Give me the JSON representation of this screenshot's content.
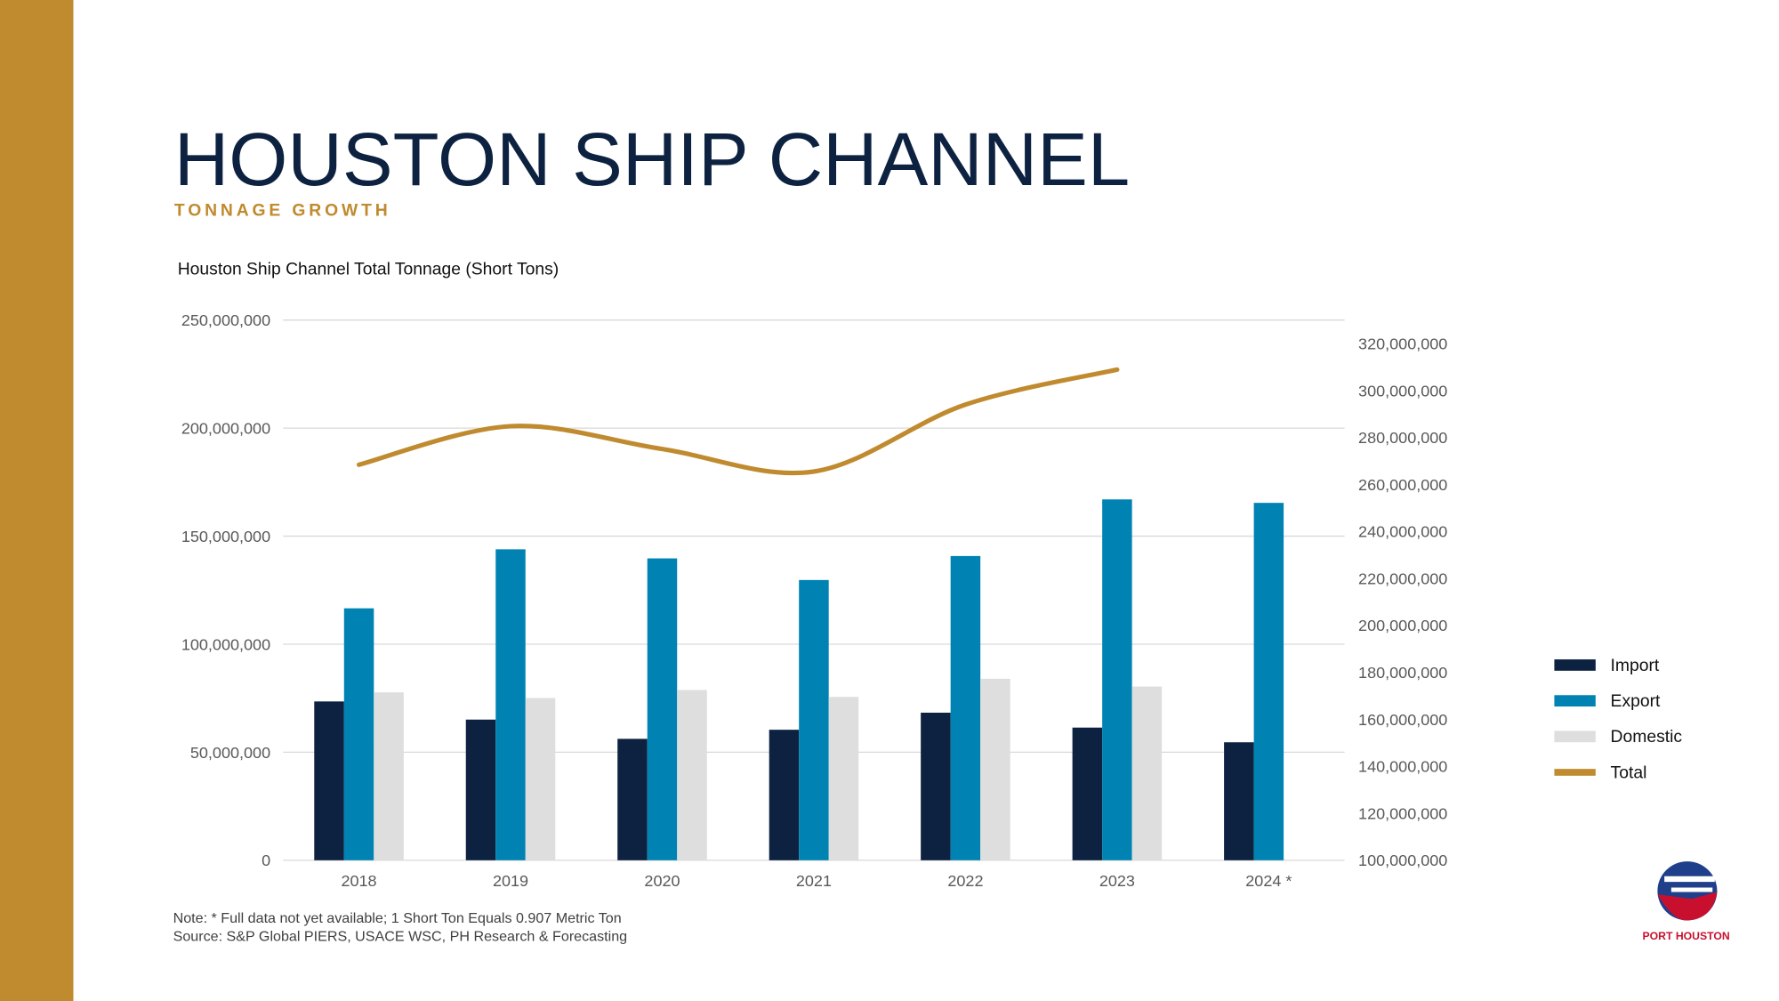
{
  "header": {
    "title": "HOUSTON SHIP CHANNEL",
    "subtitle": "TONNAGE GROWTH"
  },
  "chart_data": {
    "type": "bar",
    "title": "Houston Ship Channel Total Tonnage (Short Tons)",
    "categories": [
      "2018",
      "2019",
      "2020",
      "2021",
      "2022",
      "2023",
      "2024 *"
    ],
    "series": [
      {
        "name": "Import",
        "color": "#0d2240",
        "values": [
          73500000,
          65100000,
          56200000,
          60400000,
          68300000,
          61400000,
          54600000
        ]
      },
      {
        "name": "Export",
        "color": "#0083b3",
        "values": [
          116600000,
          143900000,
          139700000,
          129700000,
          140800000,
          167000000,
          165400000
        ]
      },
      {
        "name": "Domestic",
        "color": "#dedede",
        "values": [
          77700000,
          75100000,
          78800000,
          75600000,
          84000000,
          80400000,
          null
        ]
      },
      {
        "name": "Total",
        "color": "#c08a2e",
        "type": "line",
        "axis": "y2",
        "values": [
          268400000,
          284800000,
          275100000,
          265500000,
          294000000,
          308900000,
          null
        ]
      }
    ],
    "ylim": [
      0,
      250000000
    ],
    "yticks": [
      {
        "value": 0,
        "label": "0"
      },
      {
        "value": 50000000,
        "label": "50,000,000"
      },
      {
        "value": 100000000,
        "label": "100,000,000"
      },
      {
        "value": 150000000,
        "label": "150,000,000"
      },
      {
        "value": 200000000,
        "label": "200,000,000"
      },
      {
        "value": 250000000,
        "label": "250,000,000"
      }
    ],
    "y2lim": [
      100000000,
      330000000
    ],
    "y2ticks": [
      {
        "value": 100000000,
        "label": "100,000,000"
      },
      {
        "value": 120000000,
        "label": "120,000,000"
      },
      {
        "value": 140000000,
        "label": "140,000,000"
      },
      {
        "value": 160000000,
        "label": "160,000,000"
      },
      {
        "value": 180000000,
        "label": "180,000,000"
      },
      {
        "value": 200000000,
        "label": "200,000,000"
      },
      {
        "value": 220000000,
        "label": "220,000,000"
      },
      {
        "value": 240000000,
        "label": "240,000,000"
      },
      {
        "value": 260000000,
        "label": "260,000,000"
      },
      {
        "value": 280000000,
        "label": "280,000,000"
      },
      {
        "value": 300000000,
        "label": "300,000,000"
      },
      {
        "value": 320000000,
        "label": "320,000,000"
      }
    ],
    "grid": true,
    "legend": "right"
  },
  "notes": [
    "Note:  * Full data not yet available; 1 Short Ton Equals 0.907 Metric Ton",
    "Source:  S&P Global PIERS, USACE WSC, PH Research & Forecasting"
  ],
  "logo": {
    "text": "PORT HOUSTON"
  }
}
